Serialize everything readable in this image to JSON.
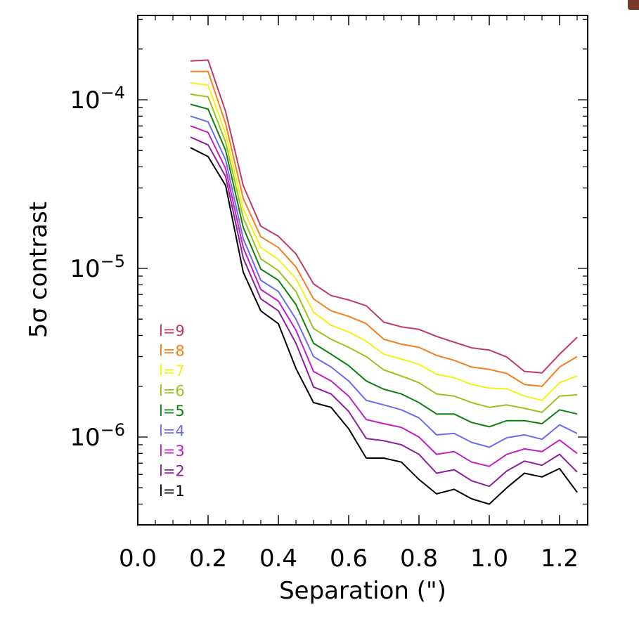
{
  "chart_data": {
    "type": "line",
    "title": "",
    "xlabel": "Separation (\")",
    "ylabel": "5σ contrast",
    "xlim": [
      0.0,
      1.28
    ],
    "ylim": [
      3e-07,
      0.0003
    ],
    "yscale": "log",
    "grid": false,
    "legend_position": "bottom-left",
    "x_ticks": [
      "0.0",
      "0.2",
      "0.4",
      "0.6",
      "0.8",
      "1.0",
      "1.2"
    ],
    "y_ticks": [
      {
        "base": "10",
        "exp": "−4"
      },
      {
        "base": "10",
        "exp": "−5"
      },
      {
        "base": "10",
        "exp": "−6"
      }
    ],
    "x": [
      0.15,
      0.2,
      0.25,
      0.3,
      0.35,
      0.4,
      0.45,
      0.5,
      0.55,
      0.6,
      0.65,
      0.7,
      0.75,
      0.8,
      0.85,
      0.9,
      0.95,
      1.0,
      1.05,
      1.1,
      1.15,
      1.2,
      1.25
    ],
    "series": [
      {
        "name": "l=9",
        "color": "#c0396b",
        "values": [
          0.00017,
          0.000172,
          8.5e-05,
          3.1e-05,
          1.78e-05,
          1.55e-05,
          1.22e-05,
          8.1e-06,
          6.9e-06,
          6.5e-06,
          6e-06,
          4.8e-06,
          4.5e-06,
          4.35e-06,
          3.95e-06,
          3.65e-06,
          3.38e-06,
          3.28e-06,
          2.98e-06,
          2.45e-06,
          2.4e-06,
          3.1e-06,
          3.9e-06
        ]
      },
      {
        "name": "l=8",
        "color": "#f57f1f",
        "values": [
          0.000147,
          0.000147,
          7.2e-05,
          2.6e-05,
          1.54e-05,
          1.33e-05,
          1.02e-05,
          6.6e-06,
          5.6e-06,
          5.2e-06,
          4.7e-06,
          3.8e-06,
          3.55e-06,
          3.4e-06,
          3.05e-06,
          2.85e-06,
          2.6e-06,
          2.52e-06,
          2.38e-06,
          2.05e-06,
          2e-06,
          2.6e-06,
          3e-06
        ]
      },
      {
        "name": "l=7",
        "color": "#f2f21a",
        "values": [
          0.000126,
          0.000122,
          6.3e-05,
          2.25e-05,
          1.33e-05,
          1.13e-05,
          8.7e-06,
          5.5e-06,
          4.6e-06,
          4.2e-06,
          3.7e-06,
          3.1e-06,
          2.9e-06,
          2.7e-06,
          2.35e-06,
          2.25e-06,
          2.05e-06,
          1.95e-06,
          1.93e-06,
          1.75e-06,
          1.65e-06,
          2.1e-06,
          2.3e-06
        ]
      },
      {
        "name": "l=6",
        "color": "#9ac21f",
        "values": [
          0.000108,
          0.000104,
          5.6e-05,
          2e-05,
          1.14e-05,
          9.7e-06,
          7.3e-06,
          4.4e-06,
          3.8e-06,
          3.4e-06,
          3e-06,
          2.5e-06,
          2.3e-06,
          2.1e-06,
          1.8e-06,
          1.75e-06,
          1.6e-06,
          1.5e-06,
          1.55e-06,
          1.48e-06,
          1.4e-06,
          1.75e-06,
          1.78e-06
        ]
      },
      {
        "name": "l=5",
        "color": "#0f7f0f",
        "values": [
          9.4e-05,
          8.8e-05,
          5e-05,
          1.75e-05,
          9.9e-06,
          8.5e-06,
          6.1e-06,
          3.6e-06,
          3.1e-06,
          2.65e-06,
          2.15e-06,
          1.92e-06,
          1.8e-06,
          1.6e-06,
          1.37e-06,
          1.37e-06,
          1.22e-06,
          1.15e-06,
          1.25e-06,
          1.25e-06,
          1.2e-06,
          1.45e-06,
          1.37e-06
        ]
      },
      {
        "name": "l=4",
        "color": "#6b6bf0",
        "values": [
          8e-05,
          7.4e-05,
          4.4e-05,
          1.5e-05,
          8.5e-06,
          7.3e-06,
          5e-06,
          3e-06,
          2.6e-06,
          2.15e-06,
          1.65e-06,
          1.55e-06,
          1.45e-06,
          1.3e-06,
          1.03e-06,
          1.05e-06,
          9.3e-07,
          8.7e-07,
          9.9e-07,
          1.03e-06,
          9.7e-07,
          1.18e-06,
          1.05e-06
        ]
      },
      {
        "name": "l=3",
        "color": "#c21fc2",
        "values": [
          7e-05,
          6.4e-05,
          3.9e-05,
          1.33e-05,
          7.5e-06,
          6.4e-06,
          4.3e-06,
          2.45e-06,
          2.15e-06,
          1.75e-06,
          1.27e-06,
          1.2e-06,
          1.14e-06,
          1e-06,
          7.9e-07,
          8.2e-07,
          7.1e-07,
          6.7e-07,
          7.9e-07,
          8.5e-07,
          8.2e-07,
          9.6e-07,
          8e-07
        ]
      },
      {
        "name": "l=2",
        "color": "#8a1f9a",
        "values": [
          6e-05,
          5.4e-05,
          3.5e-05,
          1.15e-05,
          6.6e-06,
          5.6e-06,
          3.6e-06,
          1.98e-06,
          1.8e-06,
          1.42e-06,
          9.8e-07,
          9.5e-07,
          9e-07,
          7.9e-07,
          6.1e-07,
          6.4e-07,
          5.5e-07,
          5.1e-07,
          6.3e-07,
          7.2e-07,
          6.8e-07,
          7.9e-07,
          6.2e-07
        ]
      },
      {
        "name": "l=1",
        "color": "#000000",
        "values": [
          5.2e-05,
          4.6e-05,
          3.1e-05,
          9.5e-06,
          5.6e-06,
          4.7e-06,
          2.55e-06,
          1.6e-06,
          1.5e-06,
          1.12e-06,
          7.5e-07,
          7.5e-07,
          7.1e-07,
          5.6e-07,
          4.6e-07,
          4.9e-07,
          4.3e-07,
          4e-07,
          5e-07,
          6.1e-07,
          5.8e-07,
          6.5e-07,
          4.7e-07
        ]
      }
    ]
  }
}
